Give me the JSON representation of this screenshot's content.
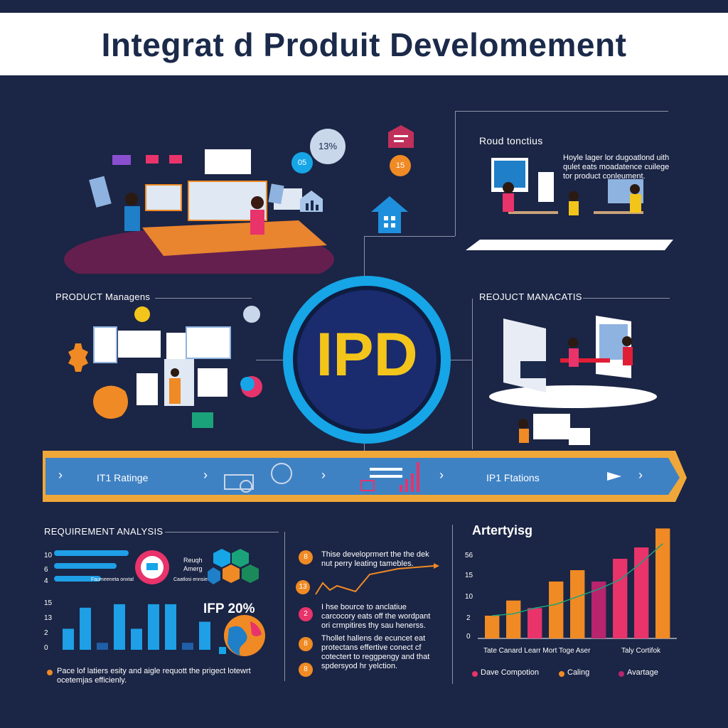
{
  "header": {
    "title": "Integrat d Produit Develomement"
  },
  "center": {
    "label": "IPD"
  },
  "top_right": {
    "title": "Roud tonctius",
    "desc": "Hoyle lager lor dugoatlond uith qulet eats moadatence cuilege tor product conleument."
  },
  "left_mid": {
    "title": "PRODUCT Managens"
  },
  "right_mid": {
    "title": "REOJUCT MANACATIS"
  },
  "top_left_badges": {
    "percent": "13%",
    "b1": "05",
    "b2": "15"
  },
  "timeline": {
    "left_label": "IT1 Ratinge",
    "right_label": "IP1 Ftations",
    "arrows": [
      "›",
      "›",
      "›",
      "›",
      "›"
    ]
  },
  "req": {
    "title": "REQUIREMENT ANALYSIS",
    "hbar_ticks": [
      "10",
      "6",
      "4"
    ],
    "hbars": [
      0.95,
      0.8,
      0.6
    ],
    "hbar_note": "Faumeeneta onxtal",
    "reshub_label": "Reuqh Amerg",
    "reshub_sub": "Caatlosi ennsiee",
    "ifp": "IFP 20%",
    "yticks": [
      "15",
      "13",
      "2",
      "0"
    ],
    "bars": [
      6,
      12,
      2,
      13,
      6,
      13,
      13,
      2,
      8
    ],
    "footer": "Pace lof latiers esity and aigle requott the prigect lotewrt ocetemjas efficienly."
  },
  "steps": {
    "items": [
      {
        "num": "8",
        "text": "Thise developrmert the the dek nut perry leating tamebles."
      },
      {
        "num": "13",
        "text": ""
      },
      {
        "num": "2",
        "text": "I hse bource to anclatiue carcocory eats off the wordpant ori crmpitires thy sau henerss."
      },
      {
        "num": "8",
        "text": "Thollet hallens de ecuncet eat protectans effertive conect cf cotectert to reggpengy and that spdersyod hr yelction."
      },
      {
        "num": "8",
        "text": ""
      }
    ]
  },
  "artertying": {
    "title": "Artertyisg",
    "yticks": [
      "56",
      "15",
      "10",
      "2",
      "0"
    ],
    "ylim": [
      0,
      60
    ],
    "bars": [
      {
        "value": 12,
        "color": "#f08a24"
      },
      {
        "value": 20,
        "color": "#f08a24"
      },
      {
        "value": 16,
        "color": "#e8336b"
      },
      {
        "value": 30,
        "color": "#f08a24"
      },
      {
        "value": 36,
        "color": "#f08a24"
      },
      {
        "value": 30,
        "color": "#b8246e"
      },
      {
        "value": 42,
        "color": "#e8336b"
      },
      {
        "value": 48,
        "color": "#e8336b"
      },
      {
        "value": 58,
        "color": "#f08a24"
      }
    ],
    "trend": [
      12,
      13,
      16,
      18,
      22,
      26,
      31,
      40,
      50
    ],
    "xlabels": "Tate Canard Learr Mort Toge Aser",
    "xlabel2": "Taly Cortifok",
    "legend": [
      {
        "label": "Dave Compotion",
        "color": "#e8336b"
      },
      {
        "label": "Caling",
        "color": "#f08a24"
      },
      {
        "label": "Avartage",
        "color": "#b8246e"
      }
    ]
  },
  "colors": {
    "background": "#1b2545",
    "accent_blue": "#16a5e6",
    "accent_orange": "#f08a24",
    "accent_yellow": "#f3c51b",
    "accent_pink": "#e8336b"
  }
}
